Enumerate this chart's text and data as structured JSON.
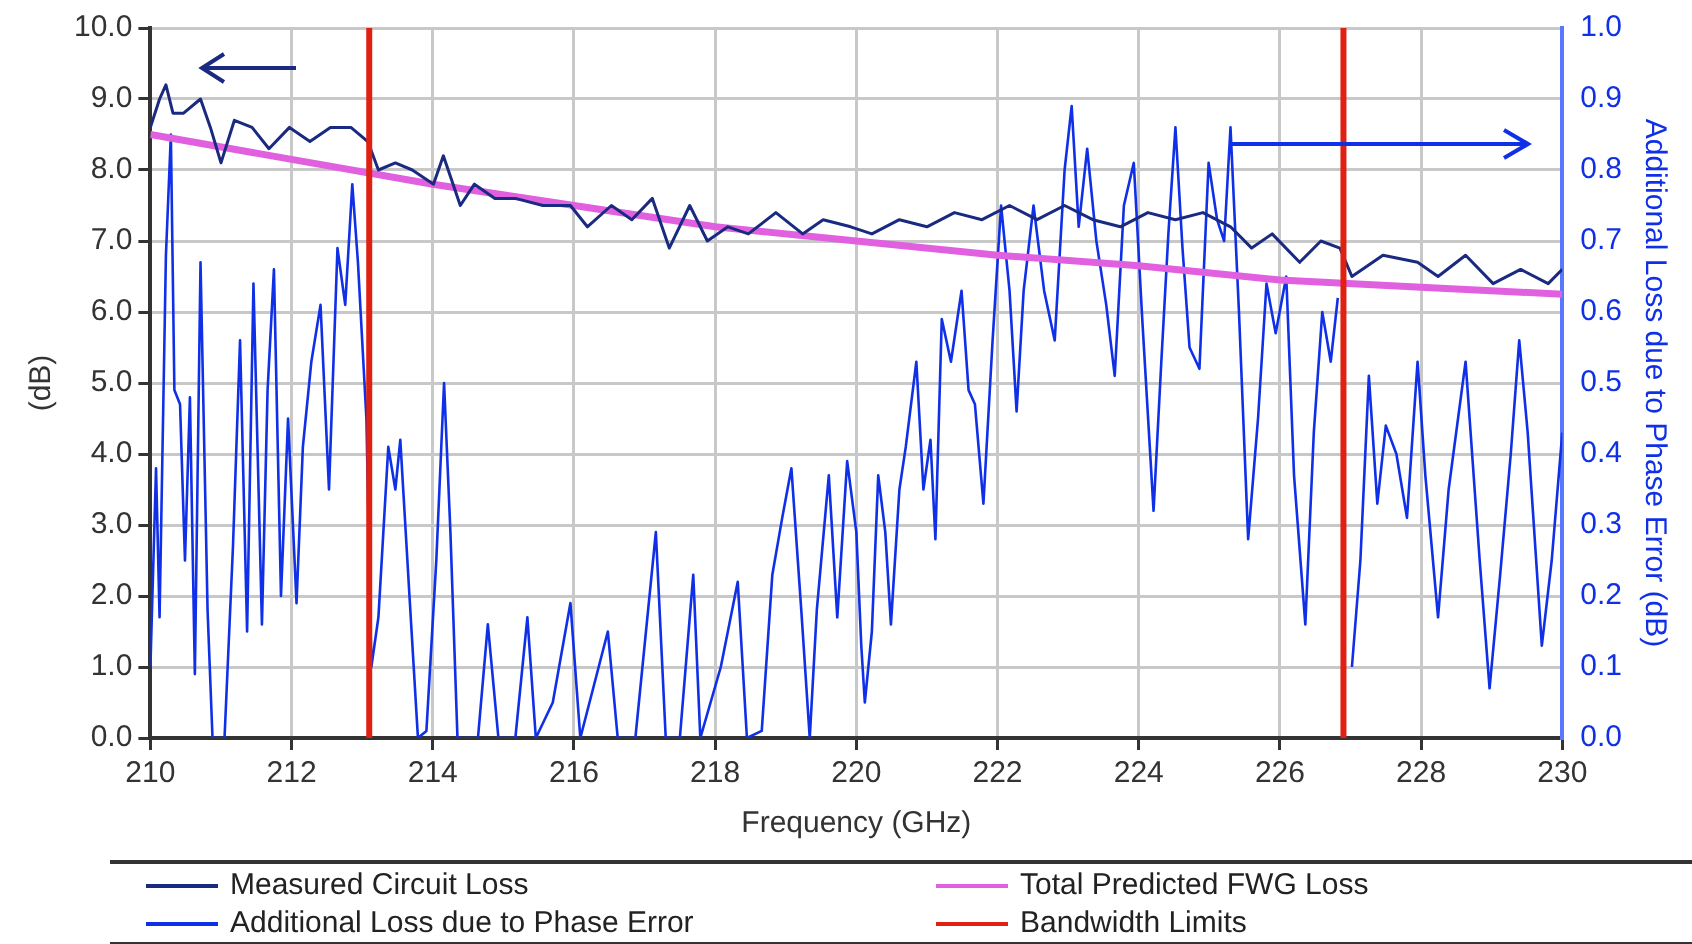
{
  "chart_data": {
    "type": "line",
    "xlabel": "Frequency (GHz)",
    "ylabel": "(dB)",
    "y2label": "Additional Loss due to Phase Error (dB)",
    "xlim": [
      210,
      230
    ],
    "xticks": [
      210,
      212,
      214,
      216,
      218,
      220,
      222,
      224,
      226,
      228,
      230
    ],
    "ylim": [
      0,
      10
    ],
    "yticks": [
      {
        "value": 0,
        "label": "0.0"
      },
      {
        "value": 1,
        "label": "1.0"
      },
      {
        "value": 2,
        "label": "2.0"
      },
      {
        "value": 3,
        "label": "3.0"
      },
      {
        "value": 4,
        "label": "4.0"
      },
      {
        "value": 5,
        "label": "5.0"
      },
      {
        "value": 6,
        "label": "6.0"
      },
      {
        "value": 7,
        "label": "7.0"
      },
      {
        "value": 8,
        "label": "8.0"
      },
      {
        "value": 9,
        "label": "9.0"
      },
      {
        "value": 10,
        "label": "10.0"
      }
    ],
    "y2lim": [
      0,
      1
    ],
    "y2ticks": [
      {
        "value": 0,
        "label": "0.0"
      },
      0.1,
      0.2,
      0.3,
      0.4,
      0.5,
      0.6,
      0.7,
      0.8,
      0.9,
      {
        "value": 1,
        "label": "1.0"
      }
    ],
    "grid": true,
    "legend": "bottom",
    "marker": "none",
    "line_style": "solid",
    "series": [
      {
        "name": "Measured Circuit Loss",
        "color": "#1a2a80",
        "x": [
          210,
          210.13,
          210.22,
          210.32,
          210.47,
          210.71,
          210.85,
          211.0,
          211.19,
          211.44,
          211.68,
          211.97,
          212.26,
          212.55,
          212.84,
          213.08,
          213.23,
          213.47,
          213.71,
          214.01,
          214.15,
          214.39,
          214.59,
          214.88,
          215.17,
          215.56,
          215.95,
          216.19,
          216.53,
          216.82,
          217.11,
          217.35,
          217.64,
          217.89,
          218.18,
          218.47,
          218.86,
          219.24,
          219.53,
          219.92,
          220.22,
          220.61,
          221.0,
          221.39,
          221.78,
          222.17,
          222.56,
          222.95,
          223.35,
          223.74,
          224.13,
          224.52,
          224.91,
          225.3,
          225.6,
          225.89,
          226.28,
          226.58,
          226.85,
          227.02,
          227.46,
          227.95,
          228.24,
          228.63,
          229.02,
          229.41,
          229.8,
          230
        ],
        "values": [
          8.6,
          9.0,
          9.2,
          8.8,
          8.8,
          9.0,
          8.6,
          8.1,
          8.7,
          8.6,
          8.3,
          8.6,
          8.4,
          8.6,
          8.6,
          8.4,
          8.0,
          8.1,
          8.0,
          7.8,
          8.2,
          7.5,
          7.8,
          7.6,
          7.6,
          7.5,
          7.5,
          7.2,
          7.5,
          7.3,
          7.6,
          6.9,
          7.5,
          7.0,
          7.2,
          7.1,
          7.4,
          7.1,
          7.3,
          7.2,
          7.1,
          7.3,
          7.2,
          7.4,
          7.3,
          7.5,
          7.3,
          7.5,
          7.3,
          7.2,
          7.4,
          7.3,
          7.4,
          7.2,
          6.9,
          7.1,
          6.7,
          7.0,
          6.9,
          6.5,
          6.8,
          6.7,
          6.5,
          6.8,
          6.4,
          6.6,
          6.4,
          6.6
        ]
      },
      {
        "name": "Total Predicted FWG Loss",
        "color": "#e060e0",
        "x": [
          210,
          212,
          214,
          216,
          218,
          220,
          222,
          224,
          226,
          228,
          230
        ],
        "values": [
          8.5,
          8.15,
          7.8,
          7.5,
          7.2,
          7.0,
          6.8,
          6.65,
          6.45,
          6.35,
          6.25
        ]
      },
      {
        "name": "Additional Loss due to Phase Error",
        "color": "#1030e8",
        "axis": "y2",
        "x": [
          210,
          210.08,
          210.13,
          210.22,
          210.29,
          210.34,
          210.42,
          210.49,
          210.56,
          210.63,
          210.71,
          210.81,
          210.88,
          211.05,
          211.17,
          211.27,
          211.37,
          211.46,
          211.58,
          211.66,
          211.75,
          211.85,
          211.95,
          212.07,
          212.16,
          212.28,
          212.41,
          212.53,
          212.65,
          212.76,
          212.86,
          212.94,
          213.06,
          213.13,
          213.23,
          213.37,
          213.47,
          213.54,
          213.67,
          213.79,
          213.91,
          214.05,
          214.16,
          214.25,
          214.35,
          214.64,
          214.78,
          214.93,
          215.17,
          215.34,
          215.46,
          215.7,
          215.95,
          216.09,
          216.48,
          216.62,
          216.87,
          217.16,
          217.3,
          217.5,
          217.69,
          217.79,
          218.08,
          218.32,
          218.45,
          218.66,
          218.81,
          218.95,
          219.08,
          219.22,
          219.34,
          219.44,
          219.61,
          219.73,
          219.87,
          220.0,
          220.07,
          220.12,
          220.22,
          220.31,
          220.41,
          220.49,
          220.61,
          220.7,
          220.85,
          220.95,
          221.05,
          221.12,
          221.21,
          221.34,
          221.49,
          221.59,
          221.68,
          221.8,
          221.93,
          222.05,
          222.17,
          222.27,
          222.37,
          222.51,
          222.66,
          222.81,
          222.95,
          223.05,
          223.15,
          223.27,
          223.4,
          223.54,
          223.66,
          223.79,
          223.93,
          224.05,
          224.21,
          224.32,
          224.42,
          224.52,
          224.62,
          224.72,
          224.86,
          224.99,
          225.11,
          225.21,
          225.3,
          225.42,
          225.55,
          225.69,
          225.81,
          225.94,
          226.09,
          226.2,
          226.36,
          226.48,
          226.6,
          226.72,
          226.82,
          226.89,
          227.02,
          227.14,
          227.26,
          227.38,
          227.5,
          227.65,
          227.8,
          227.95,
          228.06,
          228.24,
          228.39,
          228.63,
          228.83,
          228.97,
          229.12,
          229.27,
          229.39,
          229.51,
          229.71,
          229.85,
          230
        ],
        "values": [
          0.1,
          0.38,
          0.17,
          0.68,
          0.85,
          0.49,
          0.47,
          0.25,
          0.48,
          0.09,
          0.67,
          0.18,
          0,
          0,
          0.27,
          0.56,
          0.15,
          0.64,
          0.16,
          0.49,
          0.66,
          0.2,
          0.45,
          0.19,
          0.41,
          0.53,
          0.61,
          0.35,
          0.69,
          0.61,
          0.78,
          0.67,
          0.45,
          0.1,
          0.17,
          0.41,
          0.35,
          0.42,
          0.2,
          0,
          0.01,
          0.25,
          0.5,
          0.29,
          0,
          0,
          0.16,
          0,
          0,
          0.17,
          0,
          0.05,
          0.19,
          0,
          0.15,
          0,
          0,
          0.29,
          0,
          0,
          0.23,
          0,
          0.1,
          0.22,
          0,
          0.01,
          0.23,
          0.31,
          0.38,
          0.18,
          0,
          0.18,
          0.37,
          0.17,
          0.39,
          0.29,
          0.13,
          0.05,
          0.15,
          0.37,
          0.29,
          0.16,
          0.35,
          0.41,
          0.53,
          0.35,
          0.42,
          0.28,
          0.59,
          0.53,
          0.63,
          0.49,
          0.47,
          0.33,
          0.56,
          0.75,
          0.63,
          0.46,
          0.63,
          0.75,
          0.63,
          0.56,
          0.8,
          0.89,
          0.72,
          0.83,
          0.7,
          0.61,
          0.51,
          0.75,
          0.81,
          0.59,
          0.32,
          0.53,
          0.71,
          0.86,
          0.69,
          0.55,
          0.52,
          0.81,
          0.73,
          0.7,
          0.86,
          0.6,
          0.28,
          0.45,
          0.64,
          0.57,
          0.65,
          0.37,
          0.16,
          0.43,
          0.6,
          0.53,
          0.62,
          null,
          0.1,
          0.25,
          0.51,
          0.33,
          0.44,
          0.4,
          0.31,
          0.53,
          0.37,
          0.17,
          0.35,
          0.53,
          0.25,
          0.07,
          0.23,
          0.4,
          0.56,
          0.43,
          0.13,
          0.25,
          0.43
        ]
      }
    ],
    "ref_lines": [
      {
        "axis": "x",
        "value": 213.1,
        "label": "Bandwidth Limits",
        "color": "#e02010"
      },
      {
        "axis": "x",
        "value": 226.9,
        "color": "#e02010"
      }
    ]
  }
}
